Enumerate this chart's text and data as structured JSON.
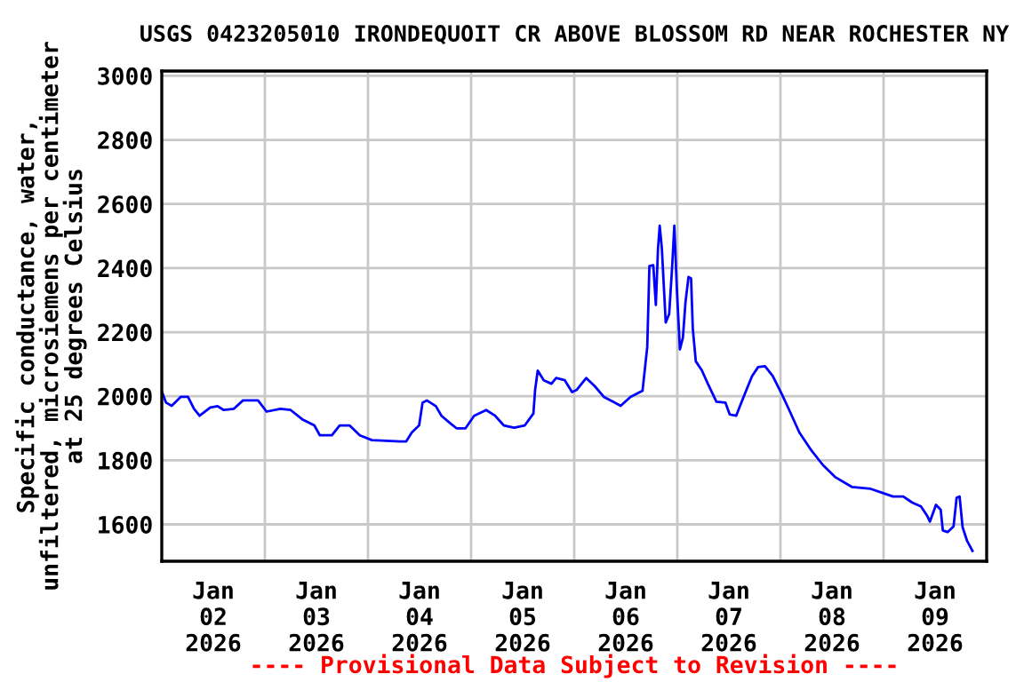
{
  "chart_data": {
    "type": "line",
    "title": "USGS 0423205010 IRONDEQUOIT CR ABOVE BLOSSOM RD NEAR ROCHESTER NY",
    "ylabel": "Specific conductance, water,\nunfiltered, microsiemens per centimeter\nat 25 degrees Celsius",
    "annotations": [
      "---- Provisional Data Subject to Revision ----"
    ],
    "x": [
      "2026-01-02T00:00",
      "2026-01-02T01:00",
      "2026-01-02T02:18",
      "2026-01-02T04:24",
      "2026-01-02T06:06",
      "2026-01-02T07:30",
      "2026-01-02T08:48",
      "2026-01-02T11:18",
      "2026-01-02T13:00",
      "2026-01-02T14:24",
      "2026-01-02T16:48",
      "2026-01-02T18:54",
      "2026-01-02T22:24",
      "2026-01-03T00:24",
      "2026-01-03T03:36",
      "2026-01-03T06:00",
      "2026-01-03T08:42",
      "2026-01-03T11:30",
      "2026-01-03T12:48",
      "2026-01-03T15:36",
      "2026-01-03T17:24",
      "2026-01-03T19:42",
      "2026-01-03T22:06",
      "2026-01-04T00:54",
      "2026-01-04T07:30",
      "2026-01-04T08:54",
      "2026-01-04T10:12",
      "2026-01-04T11:54",
      "2026-01-04T12:42",
      "2026-01-04T13:42",
      "2026-01-04T15:48",
      "2026-01-04T17:06",
      "2026-01-04T19:12",
      "2026-01-04T20:36",
      "2026-01-04T22:42",
      "2026-01-05T00:42",
      "2026-01-05T03:30",
      "2026-01-05T05:36",
      "2026-01-05T07:36",
      "2026-01-05T10:00",
      "2026-01-05T12:30",
      "2026-01-05T14:30",
      "2026-01-05T14:54",
      "2026-01-05T15:30",
      "2026-01-05T16:54",
      "2026-01-05T18:42",
      "2026-01-05T19:48",
      "2026-01-05T21:48",
      "2026-01-05T23:30",
      "2026-01-06T00:36",
      "2026-01-06T02:48",
      "2026-01-06T04:48",
      "2026-01-06T06:54",
      "2026-01-06T09:00",
      "2026-01-06T10:48",
      "2026-01-06T13:06",
      "2026-01-06T15:54",
      "2026-01-06T17:00",
      "2026-01-06T17:30",
      "2026-01-06T18:24",
      "2026-01-06T19:00",
      "2026-01-06T19:30",
      "2026-01-06T19:54",
      "2026-01-06T20:24",
      "2026-01-06T21:18",
      "2026-01-06T22:06",
      "2026-01-06T22:48",
      "2026-01-06T23:18",
      "2026-01-06T23:54",
      "2026-01-07T00:36",
      "2026-01-07T01:18",
      "2026-01-07T01:54",
      "2026-01-07T02:36",
      "2026-01-07T03:12",
      "2026-01-07T03:36",
      "2026-01-07T04:18",
      "2026-01-07T05:42",
      "2026-01-07T07:06",
      "2026-01-07T09:06",
      "2026-01-07T11:12",
      "2026-01-07T12:12",
      "2026-01-07T13:42",
      "2026-01-07T14:36",
      "2026-01-07T16:00",
      "2026-01-07T17:24",
      "2026-01-07T18:48",
      "2026-01-07T20:24",
      "2026-01-07T22:12",
      "2026-01-08T00:18",
      "2026-01-08T01:54",
      "2026-01-08T04:24",
      "2026-01-08T07:12",
      "2026-01-08T09:54",
      "2026-01-08T12:42",
      "2026-01-08T16:36",
      "2026-01-08T21:00",
      "2026-01-08T23:48",
      "2026-01-09T02:12",
      "2026-01-09T04:36",
      "2026-01-09T06:42",
      "2026-01-09T08:42",
      "2026-01-09T10:06",
      "2026-01-09T10:48",
      "2026-01-09T12:12",
      "2026-01-09T13:18",
      "2026-01-09T13:48",
      "2026-01-09T14:54",
      "2026-01-09T16:18",
      "2026-01-09T17:00",
      "2026-01-09T17:42",
      "2026-01-09T18:24",
      "2026-01-09T19:24",
      "2026-01-09T20:42"
    ],
    "series": [
      {
        "color": "#0000ff",
        "values": [
          2015,
          1980,
          1970,
          1998,
          1998,
          1961,
          1939,
          1965,
          1969,
          1957,
          1961,
          1987,
          1987,
          1952,
          1961,
          1957,
          1928,
          1909,
          1878,
          1878,
          1909,
          1909,
          1878,
          1863,
          1859,
          1859,
          1887,
          1909,
          1980,
          1987,
          1969,
          1939,
          1915,
          1900,
          1900,
          1939,
          1957,
          1939,
          1909,
          1902,
          1909,
          1946,
          2020,
          2080,
          2050,
          2039,
          2057,
          2050,
          2013,
          2020,
          2057,
          2031,
          1998,
          1983,
          1970,
          1998,
          2017,
          2154,
          2406,
          2409,
          2285,
          2461,
          2532,
          2461,
          2230,
          2257,
          2406,
          2532,
          2332,
          2146,
          2183,
          2294,
          2372,
          2368,
          2211,
          2109,
          2081,
          2039,
          1983,
          1980,
          1943,
          1939,
          1970,
          2017,
          2063,
          2091,
          2094,
          2063,
          2007,
          1961,
          1887,
          1831,
          1785,
          1748,
          1717,
          1711,
          1698,
          1687,
          1687,
          1668,
          1656,
          1628,
          1609,
          1661,
          1646,
          1581,
          1576,
          1594,
          1683,
          1687,
          1591,
          1550,
          1517
        ]
      }
    ],
    "xlim": [
      "2026-01-02",
      "2026-01-10"
    ],
    "xticks": [
      {
        "value": "2026-01-02T12:00",
        "label": "Jan\n02\n2026"
      },
      {
        "value": "2026-01-03",
        "label": null
      },
      {
        "value": "2026-01-03T12:00",
        "label": "Jan\n03\n2026"
      },
      {
        "value": "2026-01-04",
        "label": null
      },
      {
        "value": "2026-01-04T12:00",
        "label": "Jan\n04\n2026"
      },
      {
        "value": "2026-01-05",
        "label": null
      },
      {
        "value": "2026-01-05T12:00",
        "label": "Jan\n05\n2026"
      },
      {
        "value": "2026-01-06",
        "label": null
      },
      {
        "value": "2026-01-06T12:00",
        "label": "Jan\n06\n2026"
      },
      {
        "value": "2026-01-07",
        "label": null
      },
      {
        "value": "2026-01-07T12:00",
        "label": "Jan\n07\n2026"
      },
      {
        "value": "2026-01-08",
        "label": null
      },
      {
        "value": "2026-01-08T12:00",
        "label": "Jan\n08\n2026"
      },
      {
        "value": "2026-01-09",
        "label": null
      },
      {
        "value": "2026-01-09T12:00",
        "label": "Jan\n09\n2026"
      }
    ],
    "ylim": [
      1485,
      3015
    ],
    "yticks": [
      1600,
      1800,
      2000,
      2200,
      2400,
      2600,
      2800,
      3000
    ],
    "grid": true
  }
}
